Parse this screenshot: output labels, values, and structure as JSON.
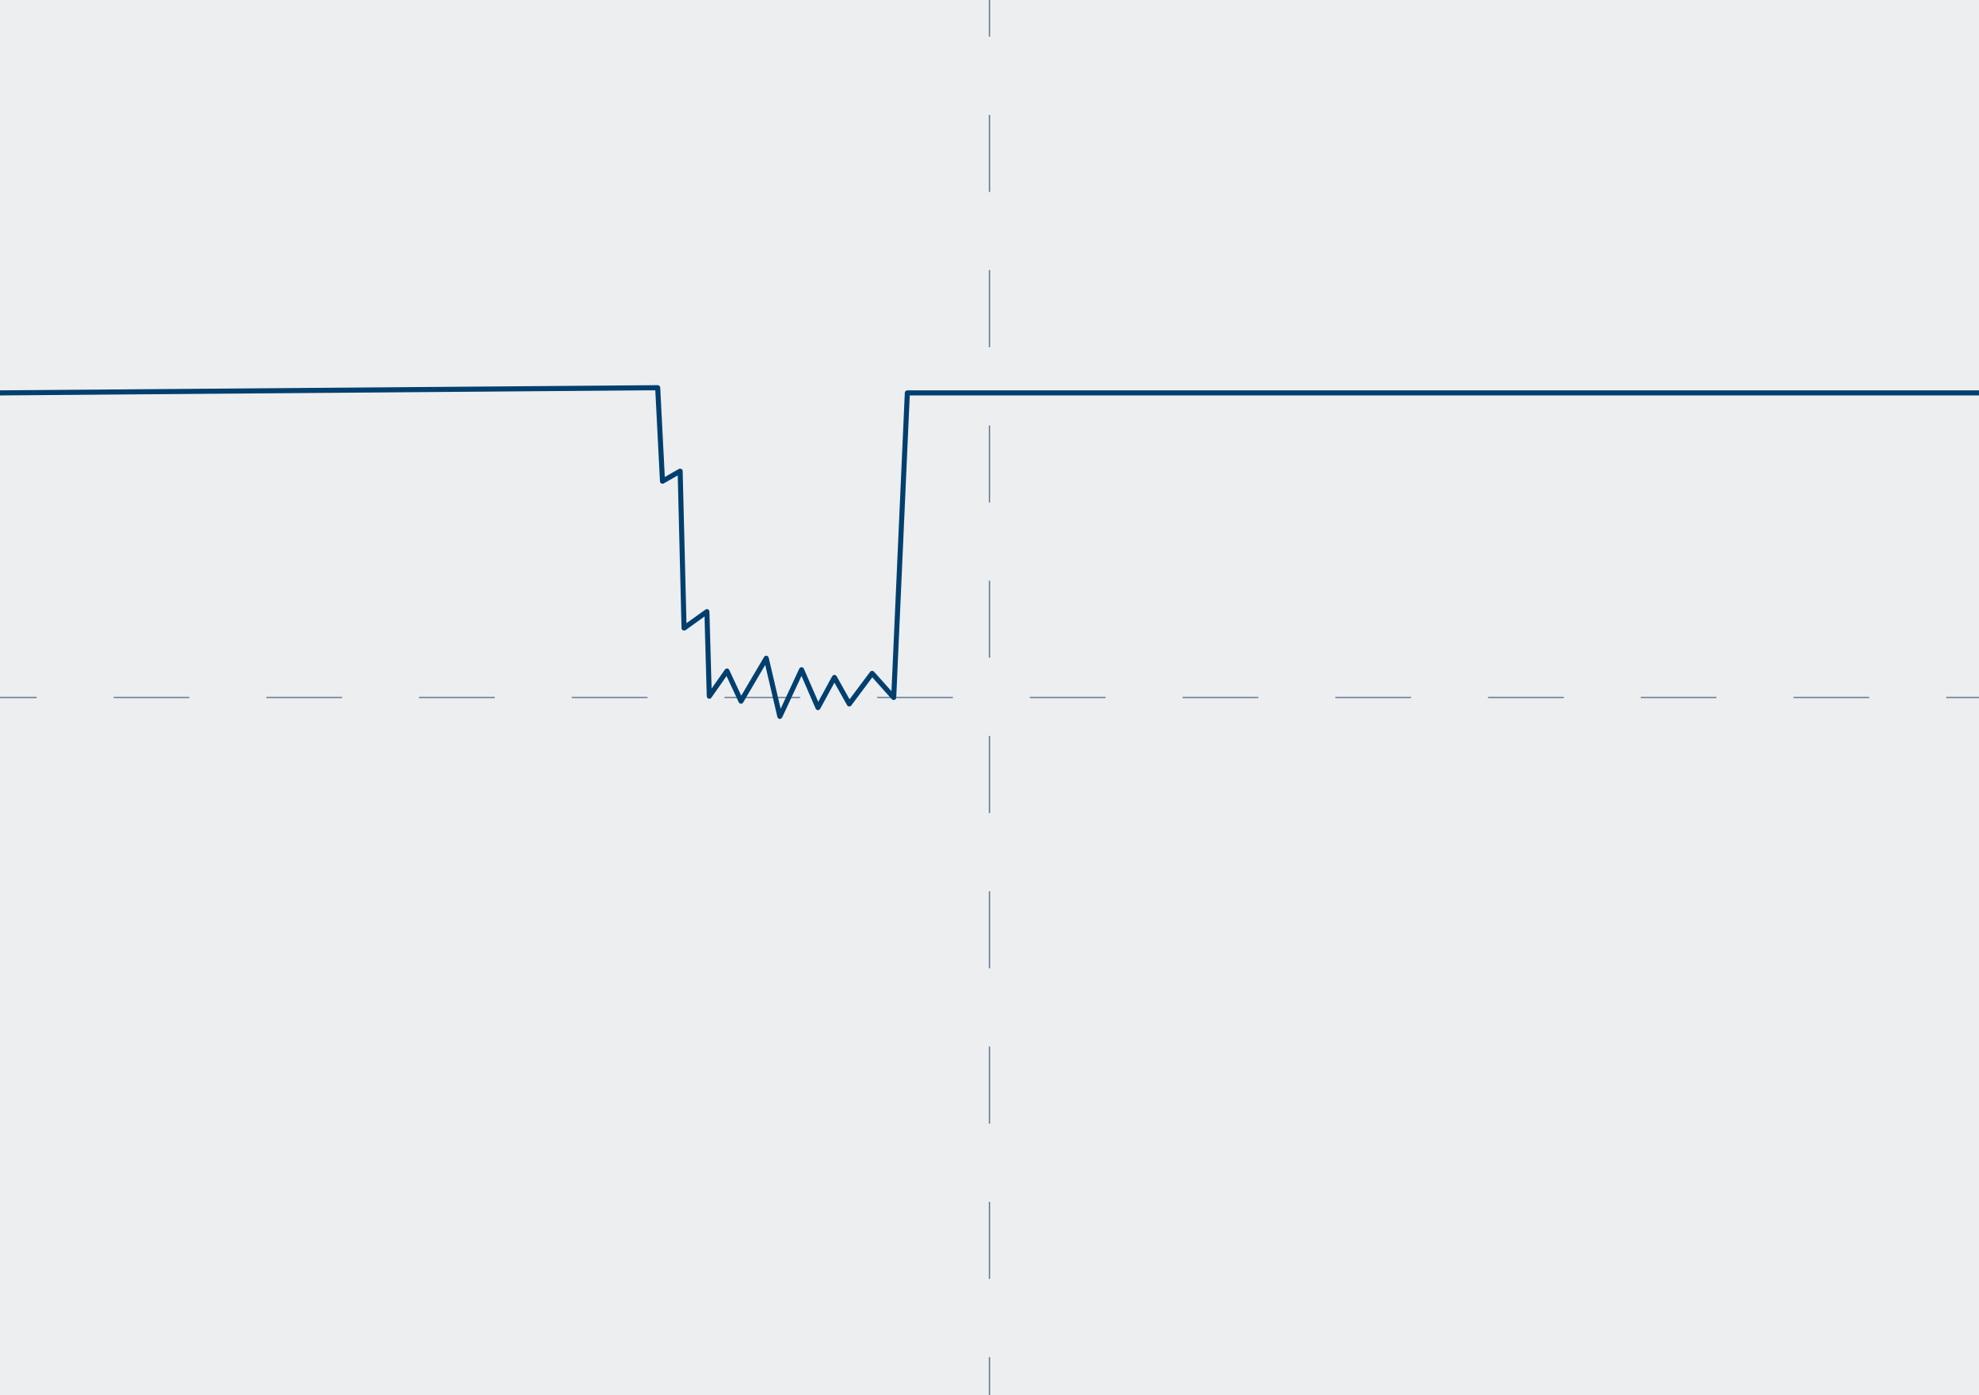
{
  "chart_data": {
    "type": "line",
    "title": "",
    "xlabel": "",
    "ylabel": "",
    "grid": false,
    "reference_lines": {
      "x": 0,
      "y": 0,
      "style": "dashed"
    },
    "xlim": [
      -3.253,
      3.253
    ],
    "ylim": [
      -2.29,
      2.29
    ],
    "series": [
      {
        "color": "#003f6e",
        "x": [
          -3.253,
          -1.091,
          -1.075,
          -1.017,
          -1.004,
          -0.929,
          -0.921,
          -0.863,
          -0.817,
          -0.734,
          -0.689,
          -0.618,
          -0.564,
          -0.51,
          -0.461,
          -0.386,
          -0.315,
          -0.27,
          3.253
        ],
        "y": [
          1.0,
          1.017,
          0.71,
          0.743,
          0.228,
          0.282,
          0.004,
          0.087,
          -0.012,
          0.129,
          -0.062,
          0.091,
          -0.033,
          0.066,
          -0.021,
          0.079,
          0.0,
          1.0,
          1.0
        ]
      }
    ],
    "colors": {
      "background": "#edeef0",
      "reference_line": "#5f7890"
    }
  }
}
